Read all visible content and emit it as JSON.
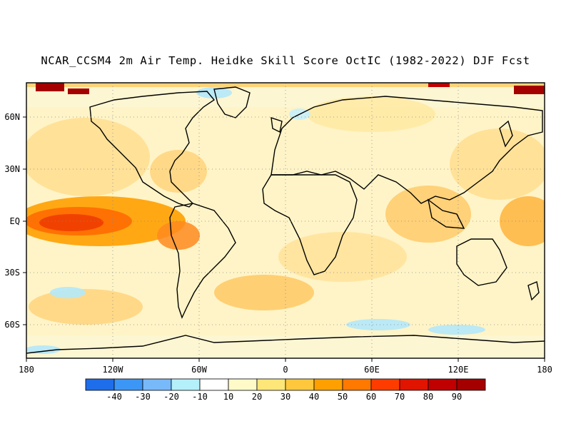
{
  "title": "NCAR_CCSM4 2m Air Temp. Heidke Skill Score OctIC (1982-2022) DJF Fcst",
  "lon_labels": [
    "180",
    "120W",
    "60W",
    "0",
    "60E",
    "120E",
    "180"
  ],
  "lat_labels": [
    "60N",
    "30N",
    "EQ",
    "30S",
    "60S"
  ],
  "colorbar": {
    "labels": [
      "-40",
      "-30",
      "-20",
      "-10",
      "10",
      "20",
      "30",
      "40",
      "50",
      "60",
      "70",
      "80",
      "90"
    ],
    "colors": [
      "#1e6eeb",
      "#3c96f5",
      "#78b9fa",
      "#b4f0fa",
      "#ffffff",
      "#fffac8",
      "#ffe678",
      "#ffc83c",
      "#ffa000",
      "#ff7800",
      "#ff3c00",
      "#e11400",
      "#c00000",
      "#a50000"
    ]
  },
  "regions": {
    "ocean_fill": "#fdf6d2",
    "high_skill_tropical_pacific": "80",
    "negative_skill_southern_ocean": "-10",
    "arctic_edge_max": "90"
  }
}
